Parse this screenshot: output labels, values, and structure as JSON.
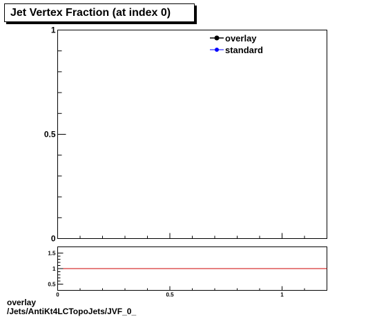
{
  "title": "Jet Vertex Fraction (at index 0)",
  "footer": {
    "line1": "overlay",
    "line2": "/Jets/AntiKt4LCTopoJets/JVF_0_"
  },
  "chart_data": [
    {
      "type": "line",
      "title": "Jet Vertex Fraction (at index 0)",
      "xlabel": "",
      "ylabel": "",
      "xlim": [
        0,
        1.2
      ],
      "ylim": [
        0,
        1
      ],
      "yticks": [
        "0",
        "0.5",
        "1"
      ],
      "legend_position": "top-right",
      "series": [
        {
          "name": "overlay",
          "color": "#000000",
          "x": [],
          "y": []
        },
        {
          "name": "standard",
          "color": "#0000ff",
          "x": [],
          "y": []
        }
      ]
    },
    {
      "type": "line",
      "xlim": [
        0,
        1.2
      ],
      "ylim": [
        0.3,
        1.7
      ],
      "xticks": [
        "0",
        "0.5",
        "1"
      ],
      "yticks": [
        "0.5",
        "1",
        "1.5"
      ],
      "reference_line": {
        "y": 1,
        "color": "#cc0000"
      }
    }
  ]
}
